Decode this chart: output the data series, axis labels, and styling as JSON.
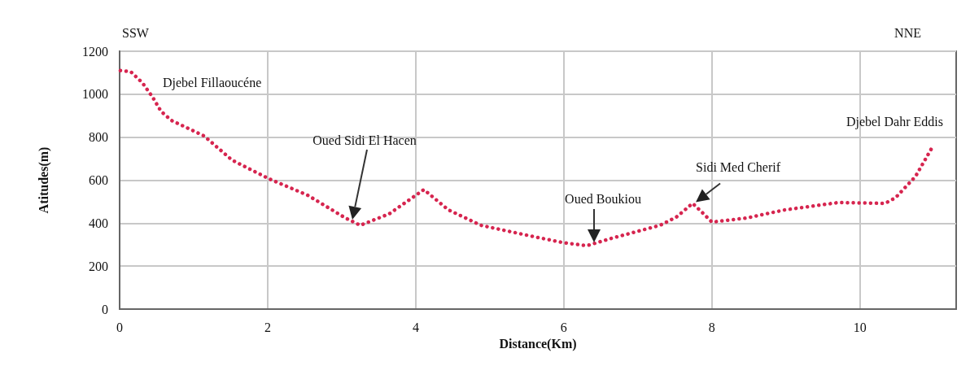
{
  "chart_data": {
    "type": "line",
    "xlabel": "Distance(Km)",
    "ylabel": "Atitudes(m)",
    "x": [
      0.01,
      0.15,
      0.31,
      0.45,
      0.56,
      0.7,
      1.14,
      1.52,
      2.02,
      2.54,
      3.05,
      3.25,
      3.64,
      4.11,
      4.44,
      4.88,
      5.54,
      5.98,
      6.31,
      6.64,
      7.3,
      7.52,
      7.74,
      7.89,
      8.0,
      8.47,
      8.99,
      9.71,
      10.34,
      10.48,
      10.75,
      10.97
    ],
    "series": [
      {
        "color": "#d6254f",
        "values": [
          1110,
          1105,
          1052,
          984,
          920,
          878,
          806,
          693,
          606,
          530,
          424,
          390,
          443,
          556,
          462,
          390,
          341,
          310,
          295,
          329,
          390,
          428,
          492,
          443,
          405,
          424,
          462,
          496,
          492,
          518,
          617,
          749
        ]
      }
    ],
    "xlim": [
      0,
      11.3
    ],
    "xticks": [
      0,
      2,
      4,
      6,
      8,
      10
    ],
    "ylim": [
      0,
      1200
    ],
    "yticks": [
      0,
      200,
      400,
      600,
      800,
      1000,
      1200
    ],
    "grid": true,
    "marker": "none",
    "line_style": "dotted",
    "annotations": [
      "SSW",
      "NNE",
      "Djebel Fillaoucéne",
      "Oued Sidi El Hacen",
      "Oued Boukiou",
      {
        "text": "Sidi Med Cherif",
        "x": 7.75,
        "y": 490
      },
      {
        "text": "Djebel Dahr Eddis",
        "x": 10.97,
        "y": 749
      }
    ]
  }
}
